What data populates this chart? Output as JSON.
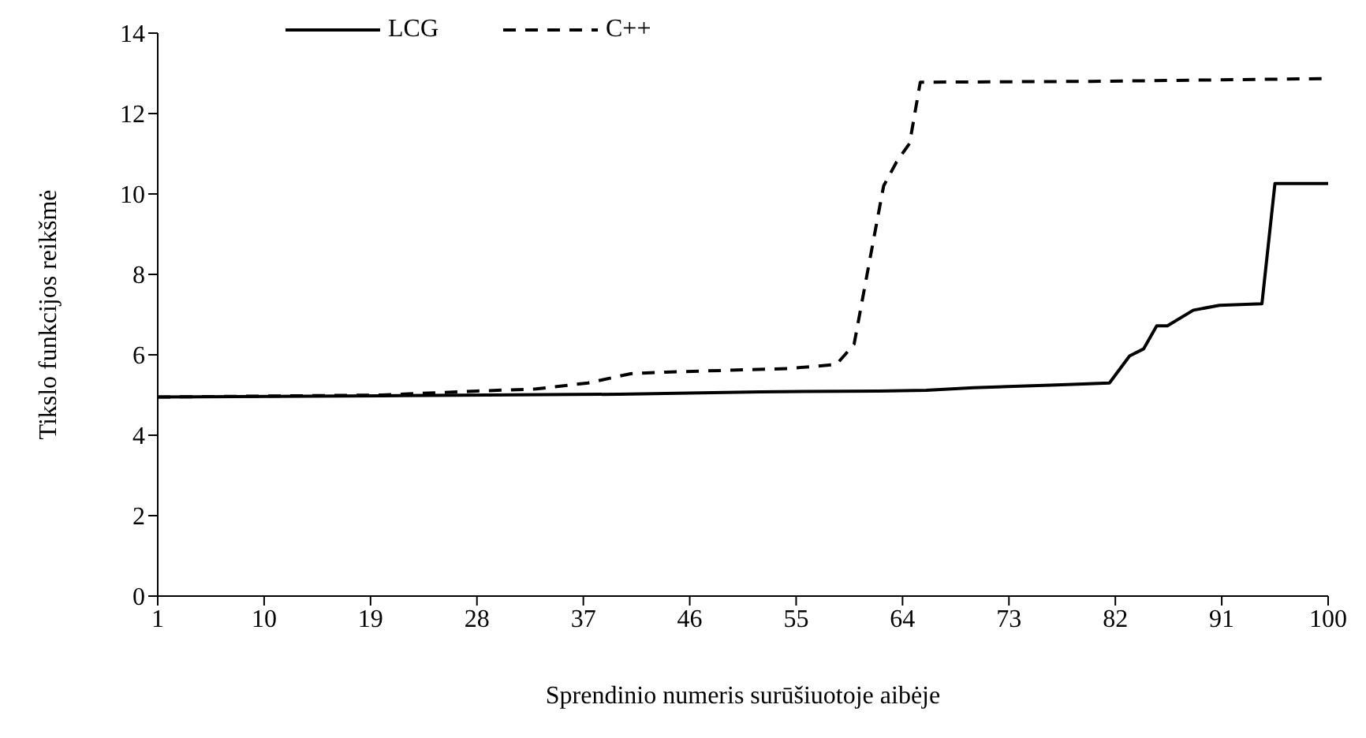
{
  "chart_data": {
    "type": "line",
    "xlabel": "Sprendinio numeris surūšiuotoje aibėje",
    "ylabel": "Tikslo funkcijos reikšmė",
    "xlim": [
      1,
      100
    ],
    "xticks": [
      1,
      10,
      19,
      28,
      37,
      46,
      55,
      64,
      73,
      82,
      91,
      100
    ],
    "ylim": [
      0,
      14
    ],
    "yticks": [
      0,
      2,
      4,
      6,
      8,
      10,
      12,
      14
    ],
    "grid": false,
    "legend": "top",
    "marker": "none",
    "series": [
      {
        "name": "LCG",
        "color": "#000000",
        "line_style": "solid",
        "x": [
          1,
          20,
          40,
          52,
          62,
          66,
          70,
          72,
          77,
          81.5,
          83.2,
          84.4,
          85.5,
          86.4,
          88.6,
          90.8,
          94.4,
          95.5,
          100
        ],
        "values": [
          4.95,
          4.98,
          5.02,
          5.08,
          5.1,
          5.12,
          5.18,
          5.2,
          5.25,
          5.3,
          5.97,
          6.15,
          6.72,
          6.72,
          7.11,
          7.23,
          7.27,
          10.26,
          10.26
        ]
      },
      {
        "name": "C++",
        "color": "#000000",
        "line_style": "dashed",
        "x": [
          1,
          20,
          28,
          33,
          37.4,
          41,
          44,
          54.4,
          58.4,
          59.9,
          61,
          62.4,
          63.5,
          64.6,
          65.5,
          80,
          100
        ],
        "values": [
          4.95,
          5.0,
          5.1,
          5.15,
          5.3,
          5.53,
          5.57,
          5.66,
          5.76,
          6.26,
          8.0,
          10.2,
          10.8,
          11.26,
          12.78,
          12.8,
          12.87
        ]
      }
    ]
  }
}
